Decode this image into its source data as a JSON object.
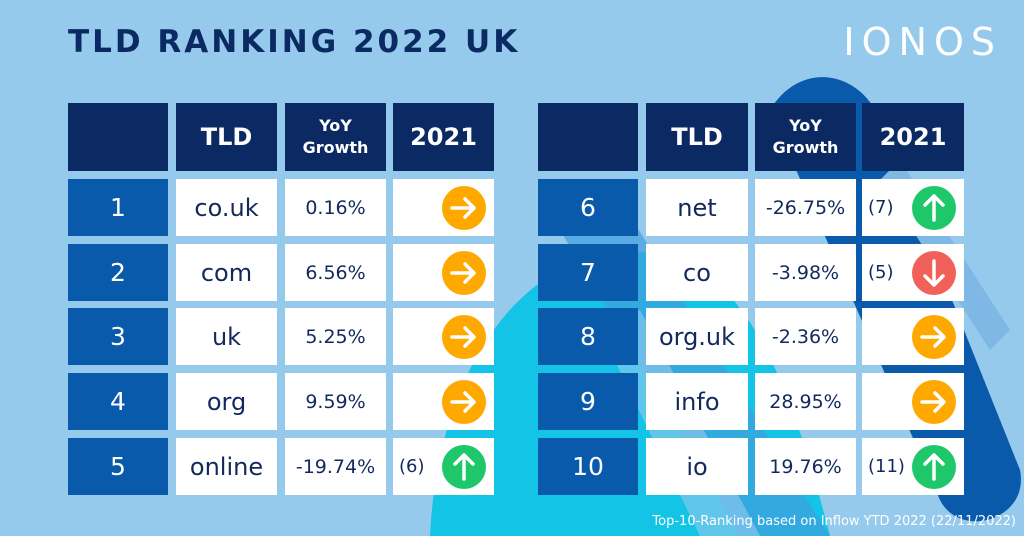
{
  "title": "TLD RANKING 2022 UK",
  "logo": "IONOS",
  "headers": {
    "tld": "TLD",
    "yoy_line1": "YoY",
    "yoy_line2": "Growth",
    "prev": "2021"
  },
  "colors": {
    "header": "#0b2a63",
    "rank": "#0a5aab",
    "same": "#ffa800",
    "up": "#1ec86a",
    "down": "#f2605a"
  },
  "rows": [
    {
      "rank": "1",
      "tld": "co.uk",
      "yoy": "0.16%",
      "prev": "",
      "trend": "same"
    },
    {
      "rank": "2",
      "tld": "com",
      "yoy": "6.56%",
      "prev": "",
      "trend": "same"
    },
    {
      "rank": "3",
      "tld": "uk",
      "yoy": "5.25%",
      "prev": "",
      "trend": "same"
    },
    {
      "rank": "4",
      "tld": "org",
      "yoy": "9.59%",
      "prev": "",
      "trend": "same"
    },
    {
      "rank": "5",
      "tld": "online",
      "yoy": "-19.74%",
      "prev": "(6)",
      "trend": "up"
    },
    {
      "rank": "6",
      "tld": "net",
      "yoy": "-26.75%",
      "prev": "(7)",
      "trend": "up"
    },
    {
      "rank": "7",
      "tld": "co",
      "yoy": "-3.98%",
      "prev": "(5)",
      "trend": "down"
    },
    {
      "rank": "8",
      "tld": "org.uk",
      "yoy": "-2.36%",
      "prev": "",
      "trend": "same"
    },
    {
      "rank": "9",
      "tld": "info",
      "yoy": "28.95%",
      "prev": "",
      "trend": "same"
    },
    {
      "rank": "10",
      "tld": "io",
      "yoy": "19.76%",
      "prev": "(11)",
      "trend": "up"
    }
  ],
  "footnote": "Top-10-Ranking based on Inflow YTD 2022 (22/11/2022)"
}
